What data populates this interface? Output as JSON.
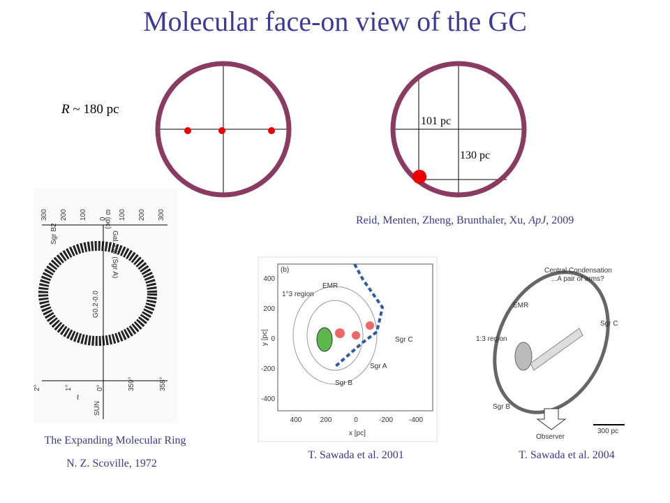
{
  "title": "Molecular face-on view of the GC",
  "left_diagram": {
    "label_var": "R",
    "label_rest": " ~ 180 pc"
  },
  "right_diagram": {
    "label_a": "101 pc",
    "label_b": "130 pc"
  },
  "reid_citation": {
    "authors": "Reid, Menten, Zheng, Brunthaler, Xu, ",
    "journal": "ApJ,",
    "year": " 2009"
  },
  "scoville": {
    "caption_title": "The Expanding Molecular Ring",
    "caption_author": "N. Z. Scoville, 1972",
    "top_ticks": [
      "300",
      "200",
      "100",
      "0",
      "100",
      "200",
      "300"
    ],
    "axis_label": "ϖ (pc)",
    "labels": [
      "Sgr B2",
      "Gal. Ctr (Sgr A)",
      "G0.2-0.0"
    ],
    "bottom_ticks": [
      "2°",
      "1°",
      "0°",
      "359°",
      "358°"
    ],
    "bottom_axis": "ℓ",
    "sun": "SUN"
  },
  "sawada2001": {
    "caption": "T. Sawada et al. 2001",
    "panel": "(b)",
    "labels": [
      "EMR",
      "1°3 region",
      "Sgr C",
      "Sgr A",
      "Sgr B"
    ],
    "yticks": [
      "400",
      "200",
      "0",
      "-200",
      "-400"
    ],
    "xticks": [
      "400",
      "200",
      "0",
      "-200",
      "-400"
    ],
    "ylabel": "y [pc]",
    "xlabel": "x [pc]"
  },
  "sawada2004": {
    "caption": "T. Sawada et al. 2004",
    "labels": [
      "Central Condensation",
      "...A pair of arms?",
      "EMR",
      "1:3 region",
      "Sgr C",
      "Sgr B",
      "Observer",
      "300 pc"
    ]
  }
}
